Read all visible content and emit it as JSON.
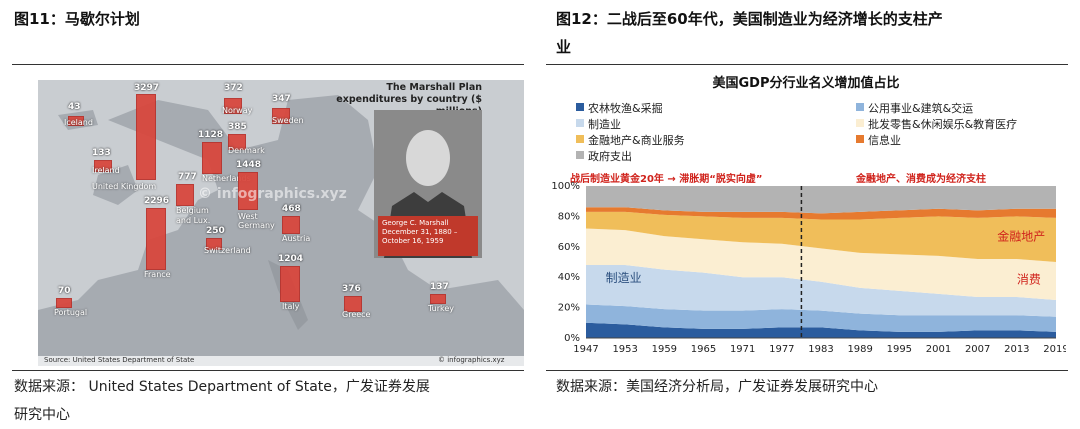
{
  "left": {
    "title": "图11：马歇尔计划",
    "source": "数据来源：  United States Department of State，广发证券发展",
    "source_line2": "研究中心",
    "map": {
      "heading": "The Marshall Plan expenditures by country ($ millions)",
      "watermark": "© infographics.xyz",
      "photo_caption_name": "George C. Marshall",
      "photo_caption_dates": "December 31, 1880 – October 16, 1959",
      "footer_source": "Source: United States Department of State",
      "footer_right": "© infographics.xyz",
      "countries": [
        {
          "name": "Iceland",
          "value": "43"
        },
        {
          "name": "Ireland",
          "value": "133"
        },
        {
          "name": "United Kingdom",
          "value": "3297"
        },
        {
          "name": "France",
          "value": "2296"
        },
        {
          "name": "Belgium and Lux.",
          "value": "777"
        },
        {
          "name": "Netherlands",
          "value": "1128"
        },
        {
          "name": "Norway",
          "value": "372"
        },
        {
          "name": "Denmark",
          "value": "385"
        },
        {
          "name": "Sweden",
          "value": "347"
        },
        {
          "name": "West Germany",
          "value": "1448"
        },
        {
          "name": "Switzerland",
          "value": "250"
        },
        {
          "name": "Austria",
          "value": "468"
        },
        {
          "name": "Italy",
          "value": "1204"
        },
        {
          "name": "Portugal",
          "value": "70"
        },
        {
          "name": "Greece",
          "value": "376"
        },
        {
          "name": "Turkey",
          "value": "137"
        }
      ]
    }
  },
  "right": {
    "title": "图12：二战后至60年代，美国制造业为经济增长的支柱产",
    "title_line2": "业",
    "source": "数据来源：美国经济分析局，广发证券发展研究中心",
    "chart_data": {
      "type": "area",
      "title": "美国GDP分行业名义增加值占比",
      "annotation_left": "战后制造业黄金20年 → 滞胀期“脱实向虚”",
      "annotation_right": "金融地产、消费成为经济支柱",
      "area_labels": {
        "manufacturing": "制造业",
        "finance": "金融地产",
        "consumption": "消费"
      },
      "x_ticks": [
        "1947",
        "1953",
        "1959",
        "1965",
        "1971",
        "1977",
        "1983",
        "1989",
        "1995",
        "2001",
        "2007",
        "2013",
        "2019"
      ],
      "y_ticks": [
        "0%",
        "20%",
        "40%",
        "60%",
        "80%",
        "100%"
      ],
      "divider_year": 1980,
      "x": [
        1947,
        1953,
        1959,
        1965,
        1971,
        1977,
        1983,
        1989,
        1995,
        2001,
        2007,
        2013,
        2019
      ],
      "series": [
        {
          "name": "农林牧渔&采掘",
          "color": "#2b5c9e",
          "values": [
            10,
            9,
            7,
            6,
            6,
            7,
            7,
            5,
            4,
            4,
            5,
            5,
            4
          ]
        },
        {
          "name": "公用事业&建筑&交运",
          "color": "#8fb4dc",
          "values": [
            12,
            12,
            12,
            12,
            12,
            12,
            11,
            11,
            11,
            11,
            10,
            10,
            10
          ]
        },
        {
          "name": "制造业",
          "color": "#c7d9ec",
          "values": [
            26,
            27,
            26,
            25,
            22,
            21,
            19,
            17,
            16,
            14,
            12,
            12,
            11
          ]
        },
        {
          "name": "批发零售&休闲娱乐&教育医疗",
          "color": "#fbeed2",
          "values": [
            24,
            23,
            22,
            22,
            23,
            22,
            22,
            23,
            24,
            25,
            25,
            25,
            25
          ]
        },
        {
          "name": "金融地产&商业服务",
          "color": "#f0be5a",
          "values": [
            11,
            12,
            14,
            15,
            16,
            17,
            19,
            22,
            24,
            26,
            27,
            28,
            29
          ]
        },
        {
          "name": "信息业",
          "color": "#e67a2f",
          "values": [
            3,
            3,
            3,
            3,
            4,
            4,
            4,
            5,
            5,
            5,
            5,
            5,
            6
          ]
        },
        {
          "name": "政府支出",
          "color": "#b3b3b3",
          "values": [
            14,
            14,
            16,
            17,
            17,
            17,
            18,
            17,
            16,
            15,
            16,
            15,
            15
          ]
        }
      ]
    }
  }
}
